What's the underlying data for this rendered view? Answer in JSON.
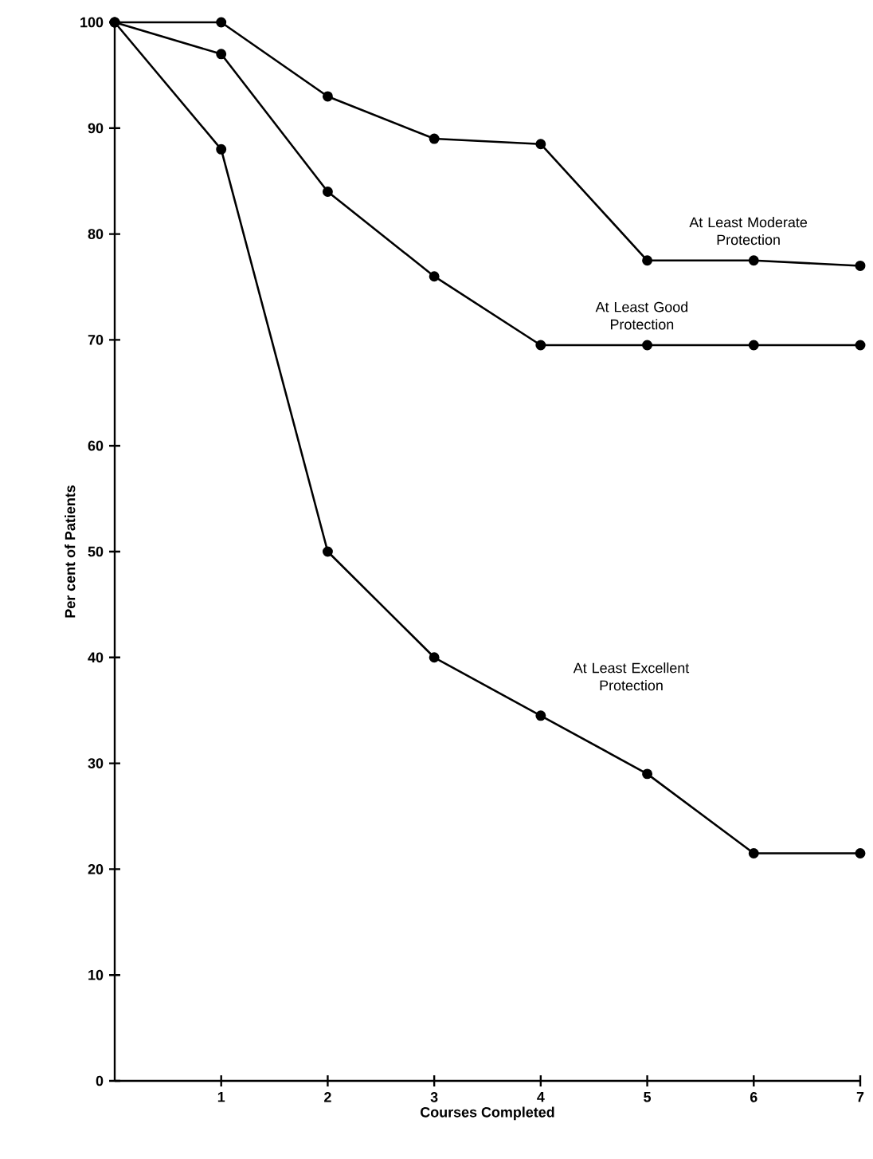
{
  "chart_data": {
    "type": "line",
    "xlabel": "Courses Completed",
    "ylabel": "Per cent of Patients",
    "x": [
      0,
      1,
      2,
      3,
      4,
      5,
      6,
      7
    ],
    "series": [
      {
        "name": "At Least Moderate Protection",
        "color": "#000000",
        "values": [
          100,
          100,
          93,
          89,
          88.5,
          77.5,
          77.5,
          77
        ]
      },
      {
        "name": "At Least Good Protection",
        "color": "#000000",
        "values": [
          100,
          97,
          84,
          76,
          69.5,
          69.5,
          69.5,
          69.5
        ]
      },
      {
        "name": "At Least Excellent Protection",
        "color": "#000000",
        "values": [
          100,
          88,
          50,
          40,
          34.5,
          29,
          21.5,
          21.5
        ]
      }
    ],
    "xlim": [
      0,
      7
    ],
    "xticks": [
      1,
      2,
      3,
      4,
      5,
      6,
      7
    ],
    "ylim": [
      0,
      100
    ],
    "yticks": [
      0,
      10,
      20,
      30,
      40,
      50,
      60,
      70,
      80,
      90,
      100
    ],
    "grid": false,
    "legend": false,
    "marker": "circle",
    "line_style": "solid"
  }
}
